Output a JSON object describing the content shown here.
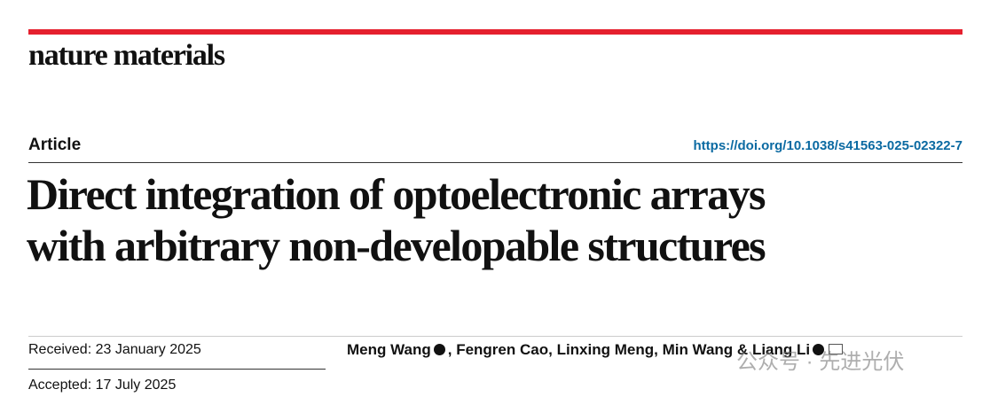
{
  "header": {
    "journal": "nature materials",
    "article_type": "Article",
    "doi": "https://doi.org/10.1038/s41563-025-02322-7"
  },
  "title_lines": [
    "Direct integration of optoelectronic arrays",
    "with arbitrary non-developable structures"
  ],
  "dates": [
    "Received: 23 January 2025",
    "Accepted: 17 July 2025"
  ],
  "authors": [
    {
      "name": "Meng Wang",
      "orcid": true
    },
    {
      "name": "Fengren Cao",
      "orcid": false
    },
    {
      "name": "Linxing Meng",
      "orcid": false
    },
    {
      "name": "Min Wang",
      "orcid": false
    },
    {
      "name": "Liang Li",
      "orcid": true,
      "corresponding": true
    }
  ],
  "author_separators": [
    ", ",
    ", ",
    ", ",
    " & "
  ],
  "watermark": "公众号 · 先进光伏"
}
